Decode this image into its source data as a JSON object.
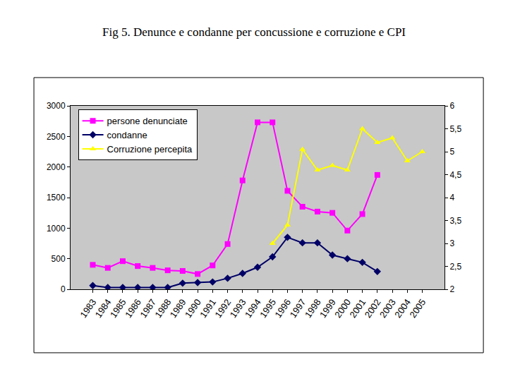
{
  "chart_data": {
    "type": "line",
    "title": "Fig 5. Denunce e condanne per concussione e corruzione e CPI",
    "categories": [
      "1983",
      "1984",
      "1985",
      "1986",
      "1987",
      "1988",
      "1989",
      "1990",
      "1991",
      "1992",
      "1993",
      "1994",
      "1995",
      "1996",
      "1997",
      "1998",
      "1999",
      "2000",
      "2001",
      "2002",
      "2003",
      "2004",
      "2005"
    ],
    "series": [
      {
        "name": "persone denunciate",
        "color": "#ff00ff",
        "marker": "square",
        "line_style": "solid",
        "values": [
          400,
          350,
          460,
          380,
          350,
          310,
          300,
          250,
          390,
          740,
          1780,
          2730,
          2730,
          1610,
          1350,
          1270,
          1250,
          960,
          1230,
          1870,
          null,
          null,
          null
        ]
      },
      {
        "name": "condanne",
        "color": "#000066",
        "marker": "diamond",
        "line_style": "solid",
        "values": [
          60,
          30,
          30,
          30,
          30,
          30,
          100,
          110,
          120,
          180,
          260,
          360,
          530,
          850,
          760,
          760,
          560,
          500,
          440,
          290,
          null,
          null,
          null
        ]
      },
      {
        "name": "Corruzione percepita",
        "color": "#ffff00",
        "marker": "triangle",
        "line_style": "solid",
        "axis": "y2",
        "values": [
          null,
          null,
          null,
          null,
          null,
          null,
          null,
          null,
          null,
          null,
          null,
          null,
          3.0,
          3.4,
          5.05,
          4.6,
          4.7,
          4.6,
          5.5,
          5.2,
          5.3,
          4.8,
          5.0
        ]
      }
    ],
    "ylim": [
      0,
      3000
    ],
    "yticks": [
      0,
      500,
      1000,
      1500,
      2000,
      2500,
      3000
    ],
    "y2lim": [
      2,
      6
    ],
    "y2ticks": [
      2,
      {
        "value": 2.5,
        "label": "2,5"
      },
      3,
      {
        "value": 3.5,
        "label": "3,5"
      },
      4,
      {
        "value": 4.5,
        "label": "4,5"
      },
      5,
      {
        "value": 5.5,
        "label": "5,5"
      },
      6
    ],
    "grid": false,
    "legend": "upper left"
  }
}
